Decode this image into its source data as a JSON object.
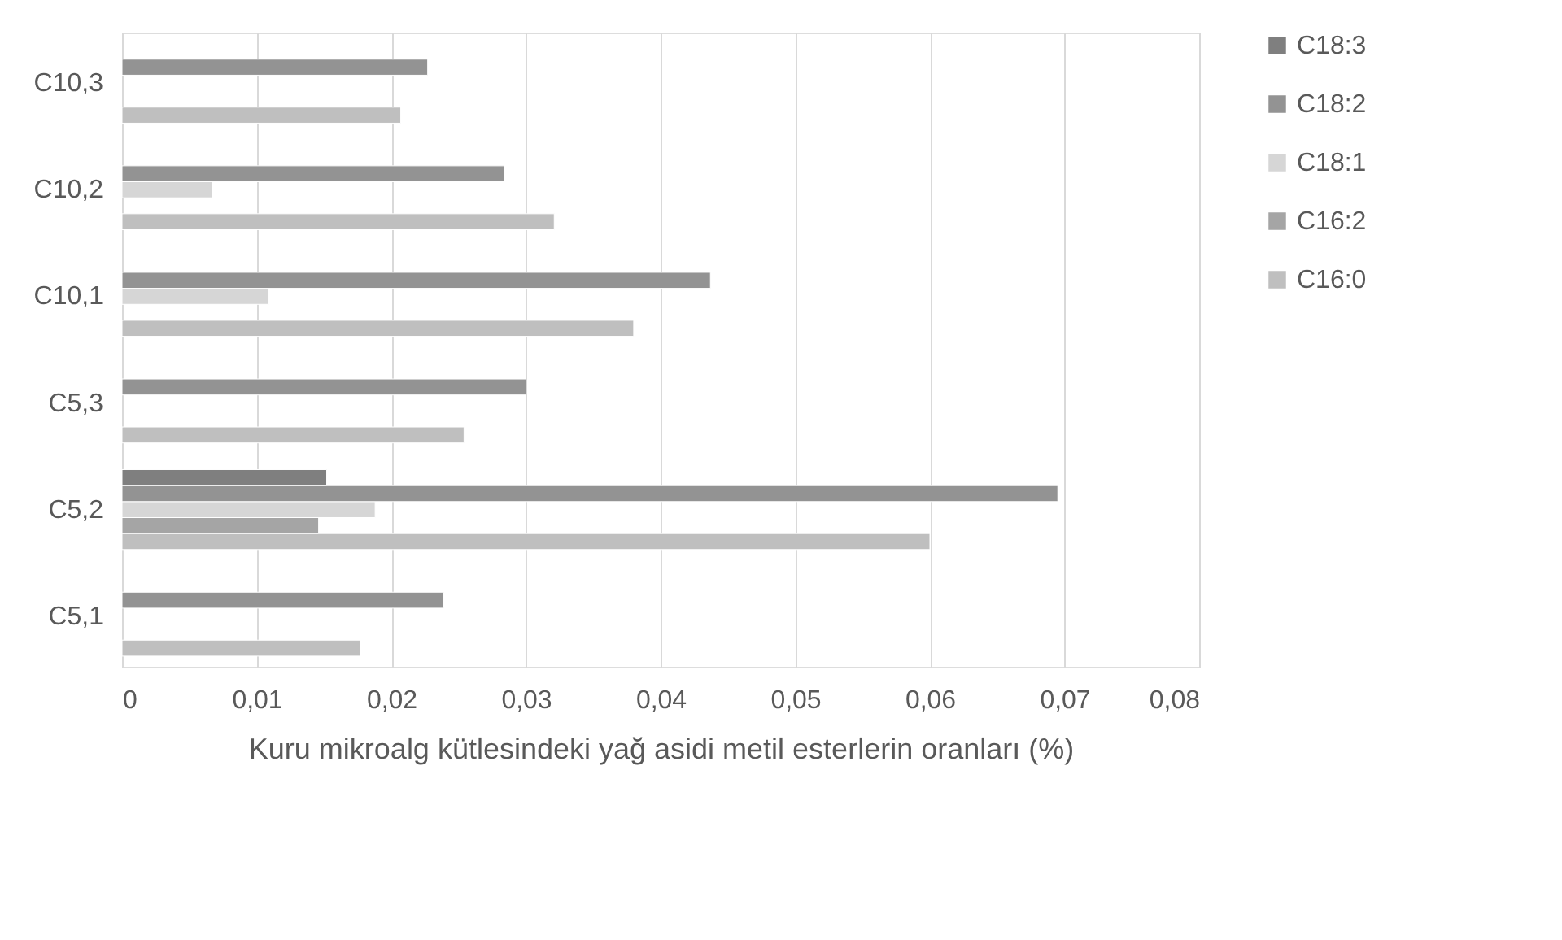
{
  "chart_data": {
    "type": "bar",
    "orientation": "horizontal",
    "xlabel": "Kuru mikroalg kütlesindeki yağ asidi metil esterlerin oranları (%)",
    "categories": [
      "C10,3",
      "C10,2",
      "C10,1",
      "C5,3",
      "C5,2",
      "C5,1"
    ],
    "series": [
      {
        "name": "C16:0",
        "color": "#bfbfbf",
        "values": [
          0.0207,
          0.0321,
          0.038,
          0.0254,
          0.06,
          0.0177
        ]
      },
      {
        "name": "C16:2",
        "color": "#a5a5a5",
        "values": [
          null,
          null,
          null,
          null,
          0.0146,
          null
        ]
      },
      {
        "name": "C18:1",
        "color": "#d6d6d6",
        "values": [
          null,
          0.0067,
          0.0109,
          null,
          0.0188,
          null
        ]
      },
      {
        "name": "C18:2",
        "color": "#939393",
        "values": [
          0.0227,
          0.0284,
          0.0437,
          0.03,
          0.0695,
          0.0239
        ]
      },
      {
        "name": "C18:3",
        "color": "#7f7f7f",
        "values": [
          null,
          null,
          null,
          null,
          0.0152,
          null
        ]
      }
    ],
    "xlim": [
      0,
      0.08
    ],
    "xticks": [
      0,
      {
        "value": 0.01,
        "label": "0,01"
      },
      {
        "value": 0.02,
        "label": "0,02"
      },
      {
        "value": 0.03,
        "label": "0,03"
      },
      {
        "value": 0.04,
        "label": "0,04"
      },
      {
        "value": 0.05,
        "label": "0,05"
      },
      {
        "value": 0.06,
        "label": "0,06"
      },
      {
        "value": 0.07,
        "label": "0,07"
      },
      {
        "value": 0.08,
        "label": "0,08"
      }
    ],
    "grid": "x",
    "legend": "right"
  }
}
